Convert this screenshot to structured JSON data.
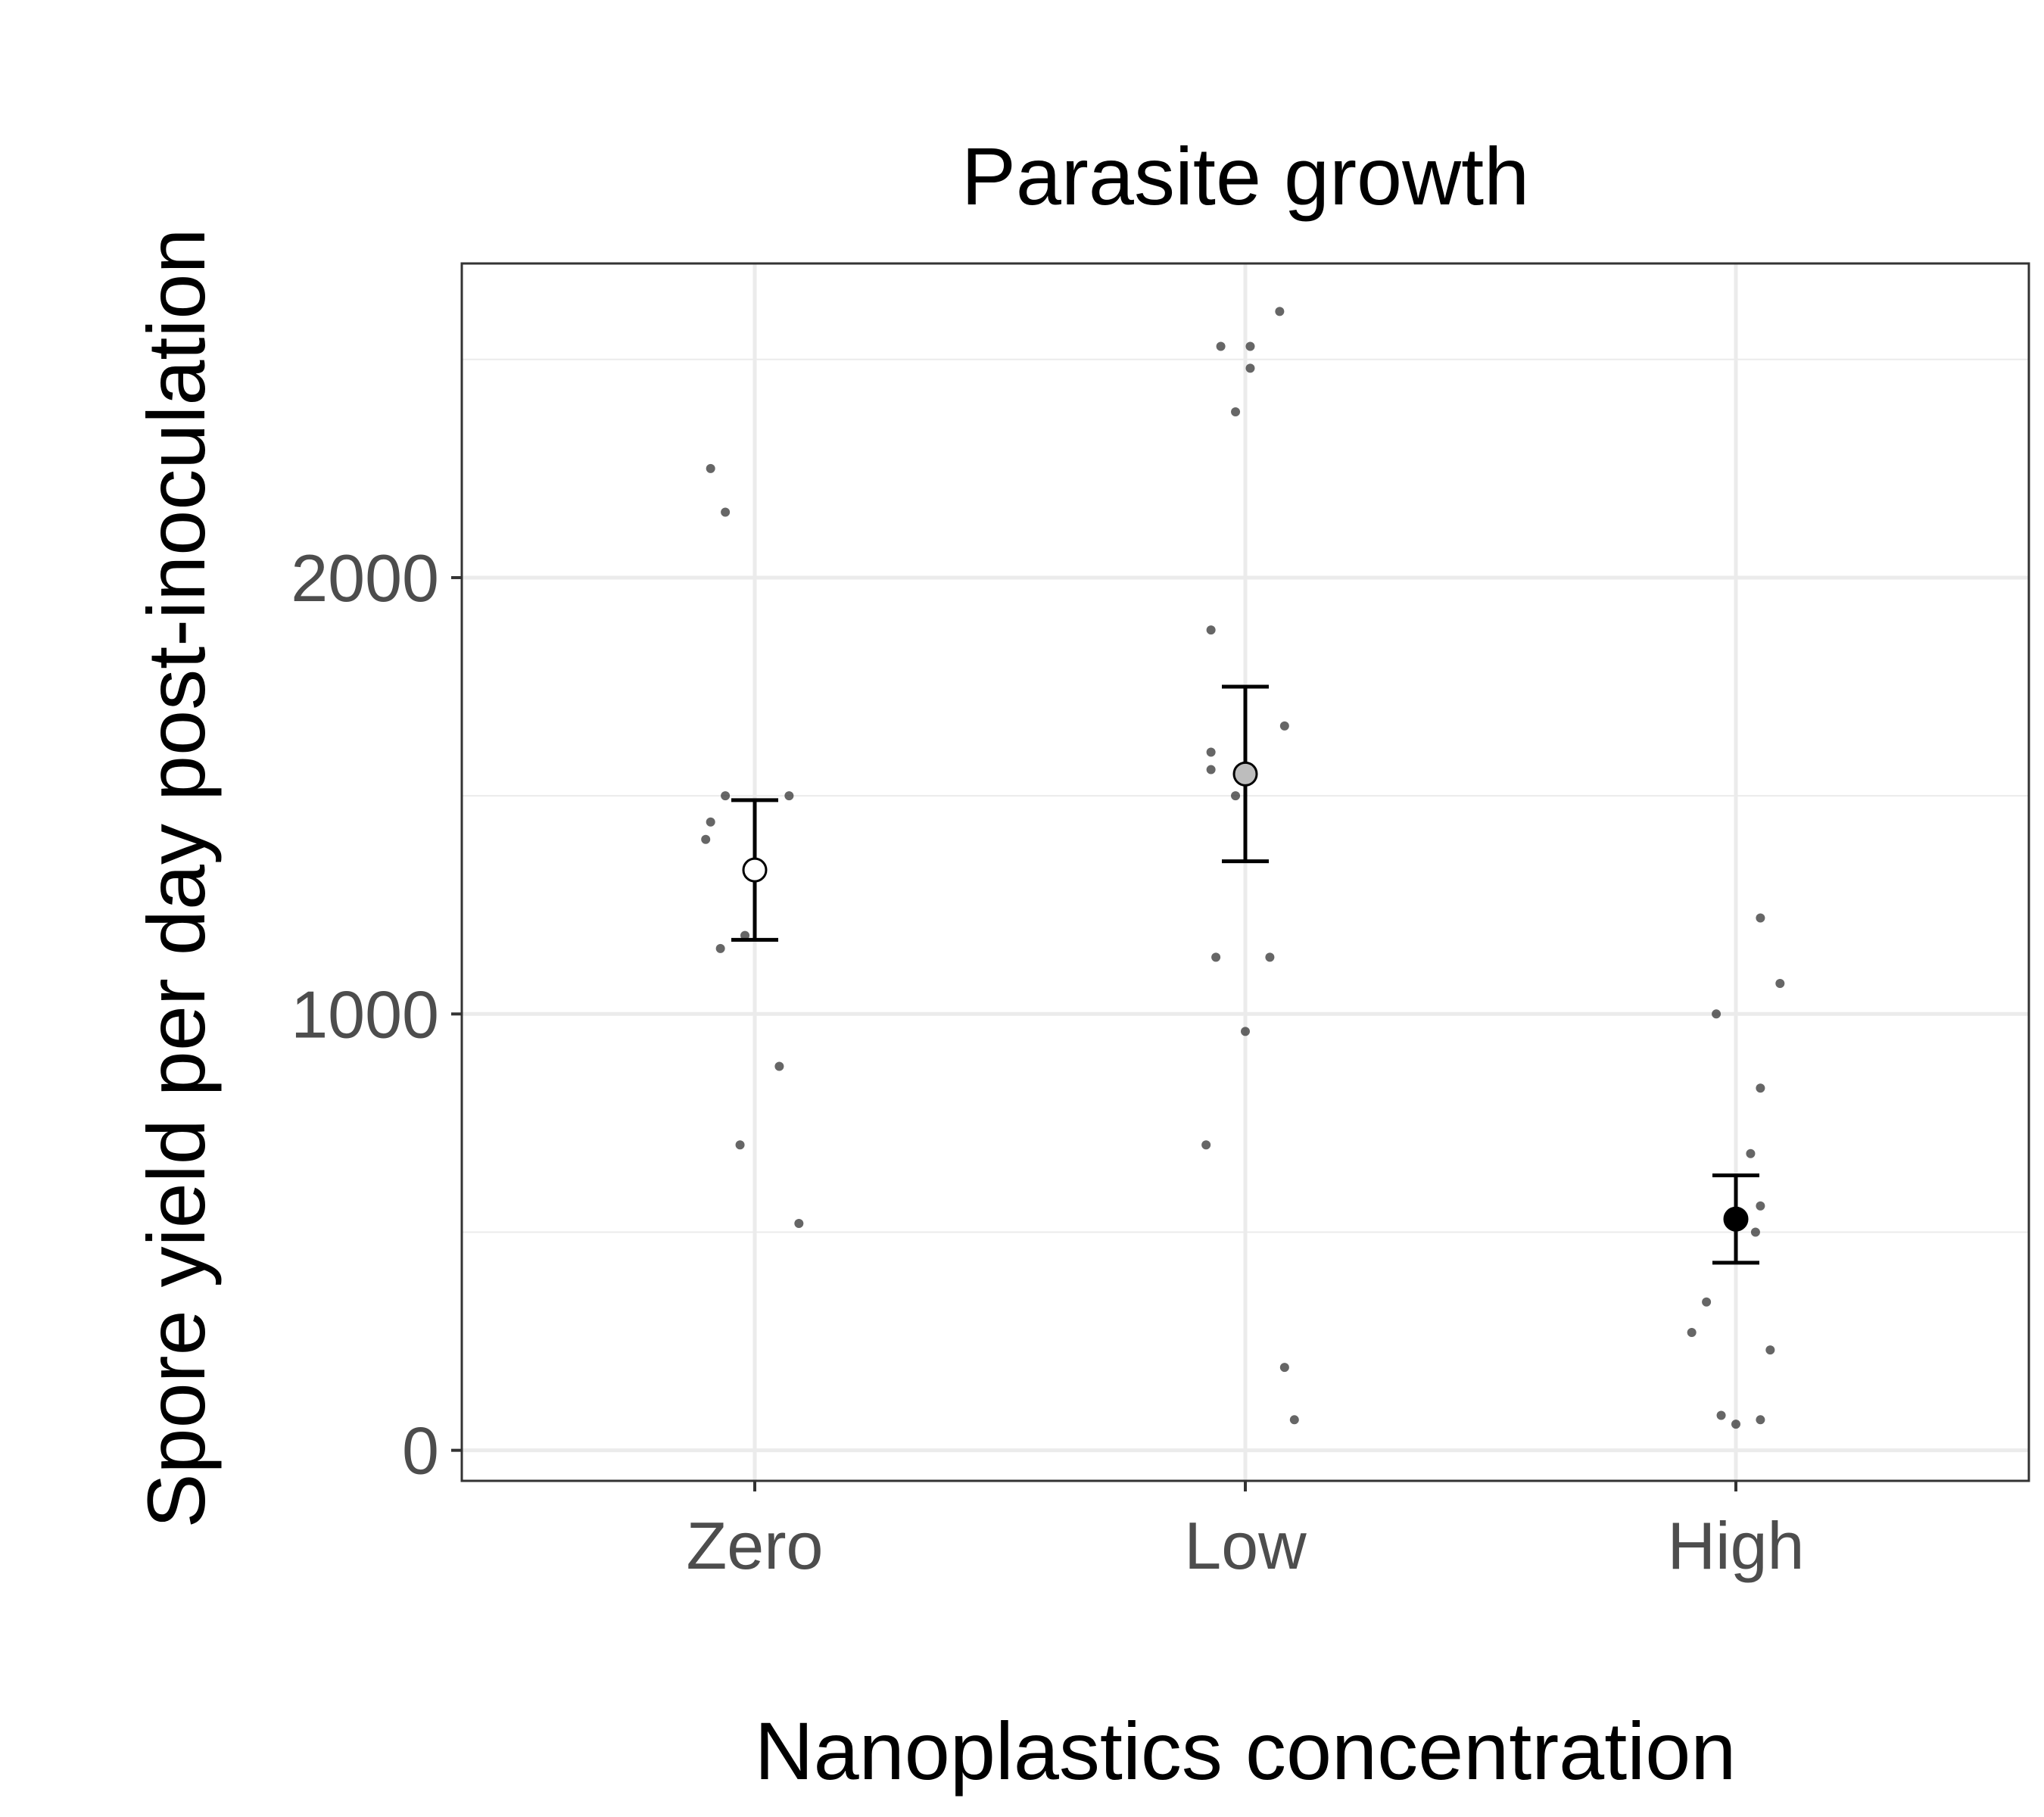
{
  "chart_data": {
    "type": "scatter",
    "title": "Parasite growth",
    "xlabel": "Nanoplastics concentration",
    "ylabel": "Spore yield per day post-inoculation",
    "categories": [
      "Zero",
      "Low",
      "High"
    ],
    "ylim": [
      -70,
      2720
    ],
    "yticks": [
      0,
      1000,
      2000
    ],
    "grid": true,
    "colors": {
      "grid": "#ebebeb",
      "panel_border": "#333333",
      "points": "#333333",
      "error_bars": "#000000",
      "tick_text": "#4d4d4d"
    },
    "points": [
      {
        "category": "Zero",
        "values": [
          2250,
          2150,
          1500,
          1500,
          1440,
          1400,
          1180,
          1150,
          880,
          700,
          520
        ],
        "jitter": [
          -0.09,
          -0.06,
          -0.06,
          0.07,
          -0.09,
          -0.1,
          -0.02,
          -0.07,
          0.05,
          -0.03,
          0.09
        ]
      },
      {
        "category": "Low",
        "values": [
          2610,
          2530,
          2530,
          2480,
          2380,
          1880,
          1660,
          1600,
          1560,
          1500,
          1130,
          1130,
          960,
          700,
          190,
          70
        ],
        "jitter": [
          0.07,
          -0.05,
          0.01,
          0.01,
          -0.02,
          -0.07,
          0.08,
          -0.07,
          -0.07,
          -0.02,
          -0.06,
          0.05,
          0.0,
          -0.08,
          0.08,
          0.1
        ]
      },
      {
        "category": "High",
        "values": [
          1220,
          1070,
          1000,
          830,
          680,
          560,
          500,
          340,
          270,
          230,
          80,
          70,
          60
        ],
        "jitter": [
          0.05,
          0.09,
          -0.04,
          0.05,
          0.03,
          0.05,
          0.04,
          -0.06,
          -0.09,
          0.07,
          -0.03,
          0.05,
          0.0
        ]
      }
    ],
    "summary": [
      {
        "category": "Zero",
        "mean": 1330,
        "lower": 1170,
        "upper": 1490,
        "fill": "#ffffff"
      },
      {
        "category": "Low",
        "mean": 1550,
        "lower": 1350,
        "upper": 1750,
        "fill": "#bdbdbd"
      },
      {
        "category": "High",
        "mean": 530,
        "lower": 430,
        "upper": 630,
        "fill": "#000000"
      }
    ]
  }
}
